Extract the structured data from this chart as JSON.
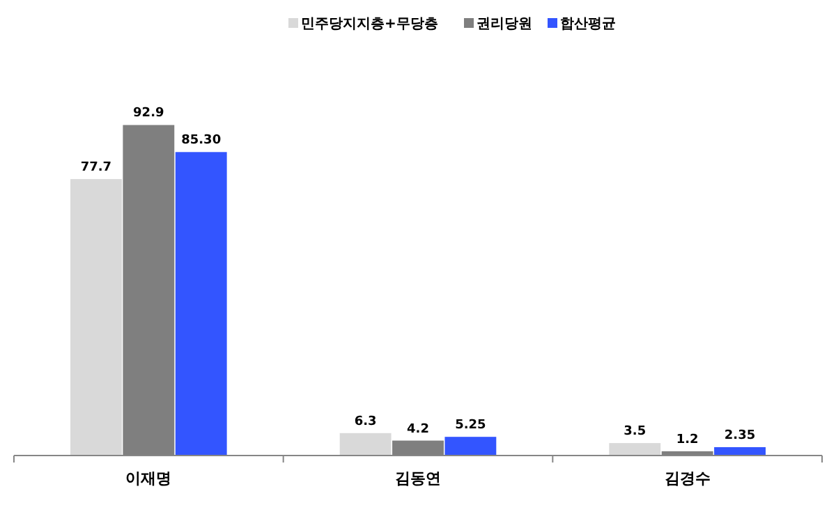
{
  "chart_data": {
    "type": "bar",
    "categories": [
      "이재명",
      "김동연",
      "김경수"
    ],
    "legend": "top",
    "series": [
      {
        "name": "민주당지지층+무당층",
        "color": "#d9d9d9",
        "values": [
          77.7,
          6.3,
          3.5
        ],
        "value_labels": [
          "77.7",
          "6.3",
          "3.5"
        ]
      },
      {
        "name": "권리당원",
        "color": "#7f7f7f",
        "values": [
          92.9,
          4.2,
          1.2
        ],
        "value_labels": [
          "92.9",
          "4.2",
          "1.2"
        ]
      },
      {
        "name": "합산평균",
        "color": "#3355ff",
        "values": [
          85.3,
          5.25,
          2.35
        ],
        "value_labels": [
          "85.30",
          "5.25",
          "2.35"
        ]
      }
    ]
  }
}
